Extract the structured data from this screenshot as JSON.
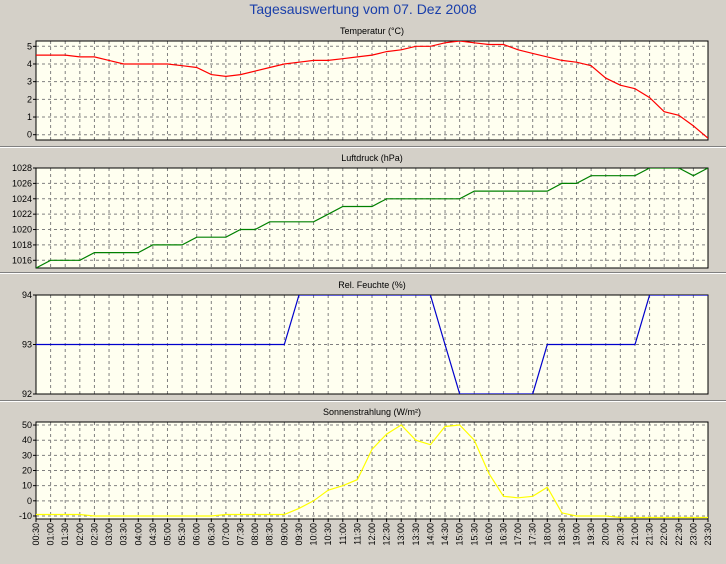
{
  "page": {
    "title": "Tagesauswertung vom 07. Dez 2008"
  },
  "x_labels": [
    "00:30",
    "01:00",
    "01:30",
    "02:00",
    "02:30",
    "03:00",
    "03:30",
    "04:00",
    "04:30",
    "05:00",
    "05:30",
    "06:00",
    "06:30",
    "07:00",
    "07:30",
    "08:00",
    "08:30",
    "09:00",
    "09:30",
    "10:00",
    "10:30",
    "11:00",
    "11:30",
    "12:00",
    "12:30",
    "13:00",
    "13:30",
    "14:00",
    "14:30",
    "15:00",
    "15:30",
    "16:00",
    "16:30",
    "17:00",
    "17:30",
    "18:00",
    "18:30",
    "19:00",
    "19:30",
    "20:00",
    "20:30",
    "21:00",
    "21:30",
    "22:00",
    "22:30",
    "23:00",
    "23:30"
  ],
  "chart_data": [
    {
      "type": "line",
      "title": "Temperatur (°C)",
      "color": "#ff0000",
      "ylim": [
        -0.3,
        5.3
      ],
      "yticks": [
        0,
        1,
        2,
        3,
        4,
        5
      ],
      "values": [
        4.5,
        4.5,
        4.5,
        4.4,
        4.4,
        4.2,
        4.0,
        4.0,
        4.0,
        4.0,
        3.9,
        3.8,
        3.4,
        3.3,
        3.4,
        3.6,
        3.8,
        4.0,
        4.1,
        4.2,
        4.2,
        4.3,
        4.4,
        4.5,
        4.7,
        4.8,
        5.0,
        5.0,
        5.2,
        5.3,
        5.2,
        5.1,
        5.1,
        4.8,
        4.6,
        4.4,
        4.2,
        4.1,
        3.9,
        3.2,
        2.8,
        2.6,
        2.1,
        1.3,
        1.1,
        0.5,
        -0.2
      ]
    },
    {
      "type": "line",
      "title": "Luftdruck (hPa)",
      "color": "#008000",
      "ylim": [
        1015,
        1028
      ],
      "yticks": [
        1016,
        1018,
        1020,
        1022,
        1024,
        1026,
        1028
      ],
      "values": [
        1015,
        1016,
        1016,
        1016,
        1017,
        1017,
        1017,
        1017,
        1018,
        1018,
        1018,
        1019,
        1019,
        1019,
        1020,
        1020,
        1021,
        1021,
        1021,
        1021,
        1022,
        1023,
        1023,
        1023,
        1024,
        1024,
        1024,
        1024,
        1024,
        1024,
        1025,
        1025,
        1025,
        1025,
        1025,
        1025,
        1026,
        1026,
        1027,
        1027,
        1027,
        1027,
        1028,
        1028,
        1028,
        1027,
        1028
      ]
    },
    {
      "type": "line",
      "title": "Rel. Feuchte (%)",
      "color": "#0000cc",
      "ylim": [
        92,
        94
      ],
      "yticks": [
        92,
        93,
        94
      ],
      "values": [
        93,
        93,
        93,
        93,
        93,
        93,
        93,
        93,
        93,
        93,
        93,
        93,
        93,
        93,
        93,
        93,
        93,
        93,
        94,
        94,
        94,
        94,
        94,
        94,
        94,
        94,
        94,
        94,
        93,
        92,
        92,
        92,
        92,
        92,
        92,
        93,
        93,
        93,
        93,
        93,
        93,
        93,
        94,
        94,
        94,
        94,
        94
      ]
    },
    {
      "type": "line",
      "title": "Sonnenstrahlung (W/m²)",
      "color": "#ffff00",
      "ylim": [
        -12,
        52
      ],
      "yticks": [
        -10,
        0,
        10,
        20,
        30,
        40,
        50
      ],
      "values": [
        -9,
        -9,
        -9,
        -9,
        -10,
        -10,
        -10,
        -10,
        -10,
        -10,
        -10,
        -10,
        -10,
        -9,
        -9,
        -9,
        -9,
        -9,
        -5,
        0,
        7,
        10,
        14,
        34,
        44,
        50,
        40,
        37,
        49,
        50,
        40,
        18,
        3,
        2,
        3,
        9,
        -8,
        -10,
        -10,
        -10,
        -11,
        -11,
        -11,
        -11,
        -11,
        -11,
        -11
      ]
    }
  ]
}
